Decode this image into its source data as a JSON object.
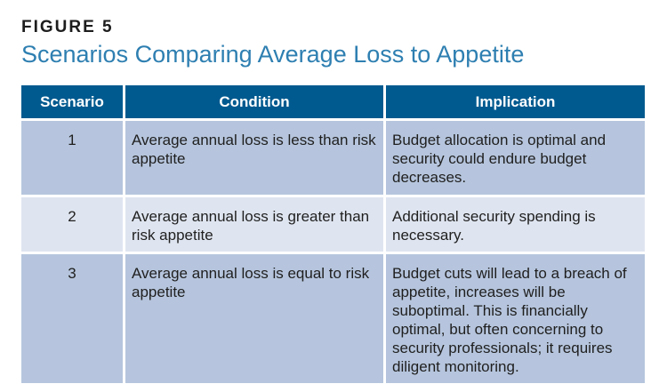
{
  "figure": {
    "label": "FIGURE 5",
    "title": "Scenarios Comparing Average Loss to Appetite"
  },
  "table": {
    "headers": [
      "Scenario",
      "Condition",
      "Implication"
    ],
    "rows": [
      {
        "scenario": "1",
        "condition": "Average annual loss is less than risk appetite",
        "implication": "Budget allocation is optimal and security could endure budget decreases."
      },
      {
        "scenario": "2",
        "condition": "Average annual loss is greater than risk appetite",
        "implication": "Additional security spending is necessary."
      },
      {
        "scenario": "3",
        "condition": "Average annual loss is equal to risk appetite",
        "implication": "Budget cuts will lead to a breach of appetite, increases will be suboptimal. This is financially optimal, but often concerning to security professionals; it requires diligent monitoring."
      }
    ]
  },
  "colors": {
    "title": "#2e7fb1",
    "header_bg": "#005a8f",
    "row_dark": "#b6c5dd",
    "row_light": "#dfe5f0"
  }
}
